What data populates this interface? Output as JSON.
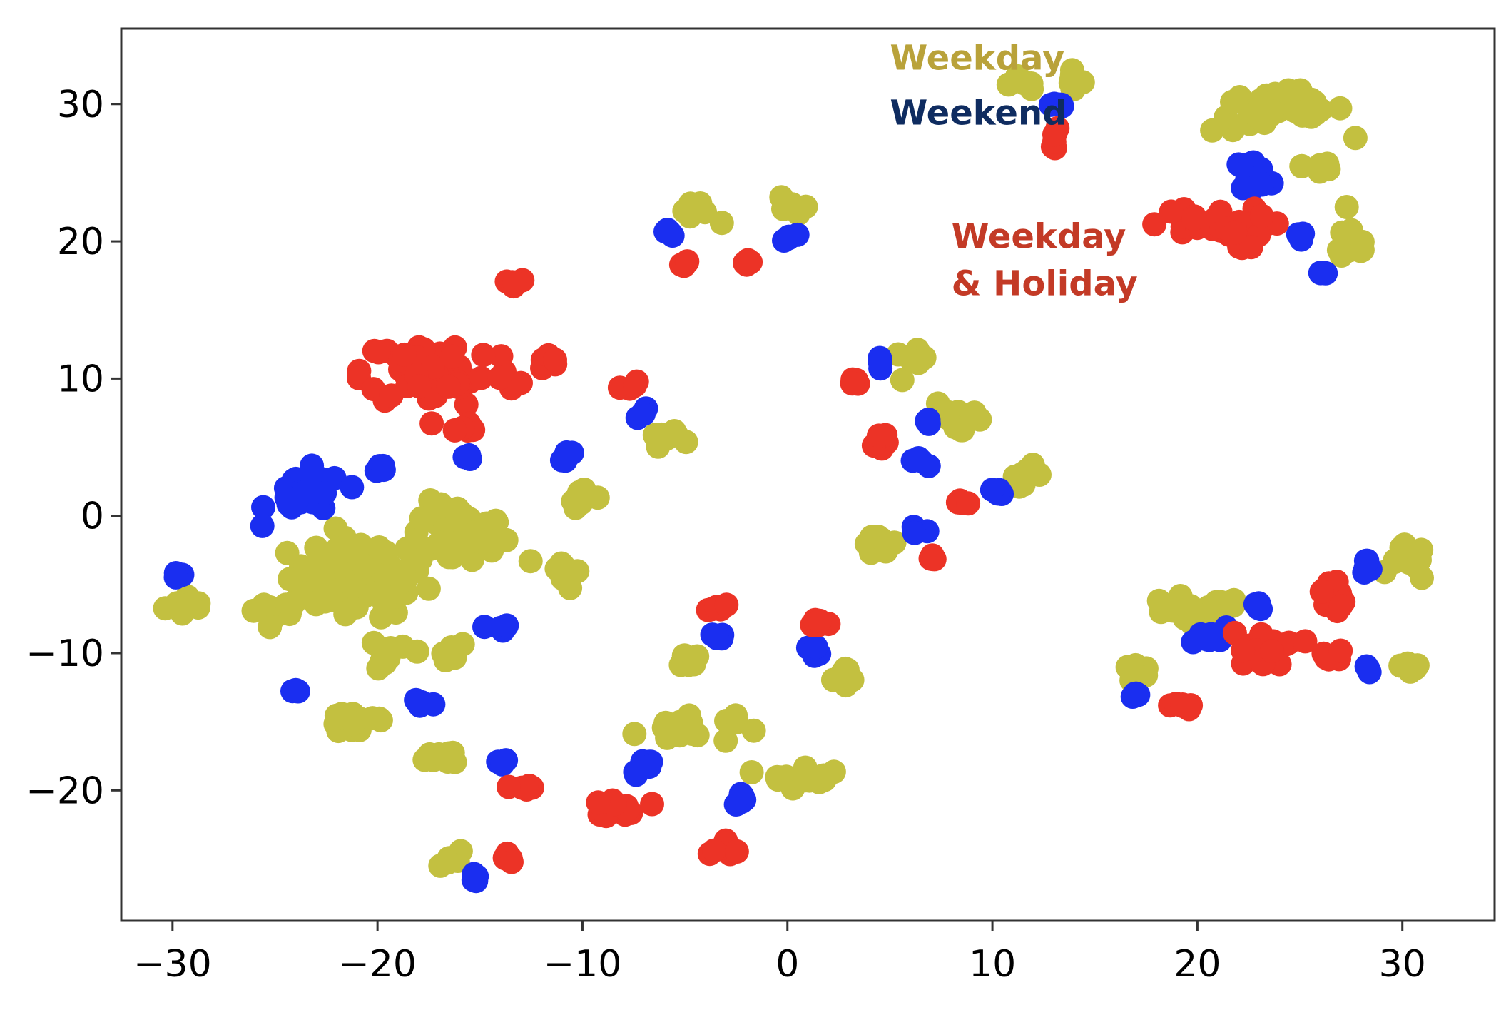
{
  "chart_data": {
    "type": "scatter",
    "title": "",
    "xlabel": "",
    "ylabel": "",
    "xlim": [
      -32.5,
      34.5
    ],
    "ylim": [
      -29.5,
      35.5
    ],
    "xticks": [
      {
        "value": -30,
        "label": "−30"
      },
      {
        "value": -20,
        "label": "−20"
      },
      {
        "value": -10,
        "label": "−10"
      },
      {
        "value": 0,
        "label": "0"
      },
      {
        "value": 10,
        "label": "10"
      },
      {
        "value": 20,
        "label": "20"
      },
      {
        "value": 30,
        "label": "30"
      }
    ],
    "yticks": [
      {
        "value": 30,
        "label": "30"
      },
      {
        "value": 20,
        "label": "20"
      },
      {
        "value": 10,
        "label": "10"
      },
      {
        "value": 0,
        "label": "0"
      },
      {
        "value": -10,
        "label": "−10"
      },
      {
        "value": -20,
        "label": "−20"
      }
    ],
    "grid": false,
    "annotations": [
      {
        "lines": [
          "Weekday"
        ],
        "x": 5,
        "y": 32.5,
        "color": "#B9A23A",
        "series": "weekday"
      },
      {
        "lines": [
          "Weekend"
        ],
        "x": 5,
        "y": 28.5,
        "color": "#0F2C60",
        "series": "weekend"
      },
      {
        "lines": [
          "Weekday",
          "& Holiday"
        ],
        "x": 8,
        "y": 19.5,
        "color": "#C33A26",
        "series": "holiday"
      }
    ],
    "series": [
      {
        "key": "weekday",
        "color": "#C3C040",
        "clusters": [
          {
            "cx": -29,
            "cy": -6.5,
            "sx": 1.2,
            "sy": 0.8,
            "n": 10
          },
          {
            "cx": -25,
            "cy": -6.8,
            "sx": 1.5,
            "sy": 0.9,
            "n": 10
          },
          {
            "cx": -21,
            "cy": -4.5,
            "sx": 3.0,
            "sy": 2.6,
            "n": 60
          },
          {
            "cx": -16,
            "cy": -1.5,
            "sx": 2.2,
            "sy": 2.2,
            "n": 40
          },
          {
            "cx": -17,
            "cy": -10,
            "sx": 1.4,
            "sy": 0.8,
            "n": 10
          },
          {
            "cx": -20,
            "cy": -10,
            "sx": 0.9,
            "sy": 1.2,
            "n": 8
          },
          {
            "cx": -21,
            "cy": -15,
            "sx": 1.8,
            "sy": 1.0,
            "n": 16
          },
          {
            "cx": -16.5,
            "cy": -17.5,
            "sx": 1.0,
            "sy": 0.6,
            "n": 8
          },
          {
            "cx": -16.5,
            "cy": -25,
            "sx": 0.7,
            "sy": 0.7,
            "n": 8
          },
          {
            "cx": -11,
            "cy": -4,
            "sx": 0.8,
            "sy": 1.1,
            "n": 8
          },
          {
            "cx": -10,
            "cy": 1.5,
            "sx": 0.6,
            "sy": 0.8,
            "n": 8
          },
          {
            "cx": -5.8,
            "cy": 5.8,
            "sx": 0.9,
            "sy": 0.6,
            "n": 8
          },
          {
            "cx": -4.7,
            "cy": 22,
            "sx": 1.0,
            "sy": 0.6,
            "n": 8
          },
          {
            "cx": 0.3,
            "cy": 22.7,
            "sx": 0.6,
            "sy": 0.8,
            "n": 8
          },
          {
            "cx": -5,
            "cy": -10.5,
            "sx": 1.0,
            "sy": 0.7,
            "n": 8
          },
          {
            "cx": -5,
            "cy": -15.5,
            "sx": 2.2,
            "sy": 1.0,
            "n": 20
          },
          {
            "cx": 0.8,
            "cy": -18.8,
            "sx": 1.6,
            "sy": 0.9,
            "n": 14
          },
          {
            "cx": 3.0,
            "cy": -11.8,
            "sx": 0.7,
            "sy": 0.7,
            "n": 8
          },
          {
            "cx": 6.0,
            "cy": 11.2,
            "sx": 0.7,
            "sy": 0.7,
            "n": 8
          },
          {
            "cx": 8.5,
            "cy": 7.2,
            "sx": 1.2,
            "sy": 1.4,
            "n": 12
          },
          {
            "cx": 11.5,
            "cy": 3.0,
            "sx": 0.9,
            "sy": 0.6,
            "n": 8
          },
          {
            "cx": 4.5,
            "cy": -2.0,
            "sx": 0.8,
            "sy": 0.6,
            "n": 8
          },
          {
            "cx": 11.5,
            "cy": 31.5,
            "sx": 0.8,
            "sy": 0.5,
            "n": 8
          },
          {
            "cx": 13.8,
            "cy": 31.7,
            "sx": 0.6,
            "sy": 0.6,
            "n": 8
          },
          {
            "cx": 24,
            "cy": 29.5,
            "sx": 3.0,
            "sy": 1.4,
            "n": 40
          },
          {
            "cx": 26.0,
            "cy": 25.5,
            "sx": 0.8,
            "sy": 0.7,
            "n": 8
          },
          {
            "cx": 27.5,
            "cy": 19.8,
            "sx": 0.9,
            "sy": 1.5,
            "n": 12
          },
          {
            "cx": 19.5,
            "cy": -7.0,
            "sx": 2.6,
            "sy": 1.0,
            "n": 26
          },
          {
            "cx": 17.2,
            "cy": -11.5,
            "sx": 0.8,
            "sy": 0.6,
            "n": 8
          },
          {
            "cx": 30.3,
            "cy": -3.5,
            "sx": 0.8,
            "sy": 1.2,
            "n": 14
          },
          {
            "cx": 30.3,
            "cy": -10.8,
            "sx": 0.7,
            "sy": 0.6,
            "n": 8
          }
        ]
      },
      {
        "key": "weekend",
        "color": "#1A2EF0",
        "clusters": [
          {
            "cx": -23.5,
            "cy": 1.5,
            "sx": 1.7,
            "sy": 1.6,
            "n": 26
          },
          {
            "cx": -19.7,
            "cy": 3.5,
            "sx": 0.4,
            "sy": 0.4,
            "n": 4
          },
          {
            "cx": -29.6,
            "cy": -4.2,
            "sx": 0.4,
            "sy": 0.3,
            "n": 4
          },
          {
            "cx": -24,
            "cy": -12.8,
            "sx": 0.2,
            "sy": 0.2,
            "n": 3
          },
          {
            "cx": -14,
            "cy": -8.2,
            "sx": 0.5,
            "sy": 0.2,
            "n": 4
          },
          {
            "cx": -17.7,
            "cy": -13.6,
            "sx": 0.5,
            "sy": 0.3,
            "n": 4
          },
          {
            "cx": -13.9,
            "cy": -17.8,
            "sx": 0.4,
            "sy": 0.4,
            "n": 4
          },
          {
            "cx": -15.3,
            "cy": -26.2,
            "sx": 0.2,
            "sy": 0.4,
            "n": 4
          },
          {
            "cx": -15.5,
            "cy": 4.3,
            "sx": 0.2,
            "sy": 0.2,
            "n": 3
          },
          {
            "cx": -10.8,
            "cy": 4.3,
            "sx": 0.4,
            "sy": 0.4,
            "n": 4
          },
          {
            "cx": -7.0,
            "cy": 7.3,
            "sx": 0.3,
            "sy": 0.4,
            "n": 4
          },
          {
            "cx": -5.7,
            "cy": 20.8,
            "sx": 0.4,
            "sy": 0.4,
            "n": 4
          },
          {
            "cx": 0.2,
            "cy": 20.4,
            "sx": 0.4,
            "sy": 0.3,
            "n": 4
          },
          {
            "cx": -6.8,
            "cy": -18.3,
            "sx": 0.8,
            "sy": 0.5,
            "n": 8
          },
          {
            "cx": -3.5,
            "cy": -8.8,
            "sx": 0.4,
            "sy": 0.4,
            "n": 4
          },
          {
            "cx": -2.4,
            "cy": -20.7,
            "sx": 0.8,
            "sy": 0.5,
            "n": 6
          },
          {
            "cx": 1.3,
            "cy": -9.8,
            "sx": 0.4,
            "sy": 0.3,
            "n": 4
          },
          {
            "cx": 4.6,
            "cy": 11.4,
            "sx": 0.2,
            "sy": 0.3,
            "n": 3
          },
          {
            "cx": 6.8,
            "cy": 7.0,
            "sx": 0.2,
            "sy": 0.3,
            "n": 3
          },
          {
            "cx": 6.5,
            "cy": 4.0,
            "sx": 0.3,
            "sy": 0.4,
            "n": 4
          },
          {
            "cx": 10.2,
            "cy": 1.7,
            "sx": 0.4,
            "sy": 0.3,
            "n": 4
          },
          {
            "cx": 6.3,
            "cy": -1.3,
            "sx": 0.3,
            "sy": 0.4,
            "n": 4
          },
          {
            "cx": 12.8,
            "cy": 29.9,
            "sx": 0.8,
            "sy": 0.2,
            "n": 6
          },
          {
            "cx": 22.8,
            "cy": 24.8,
            "sx": 0.9,
            "sy": 1.0,
            "n": 14
          },
          {
            "cx": 25.0,
            "cy": 20.5,
            "sx": 0.2,
            "sy": 0.3,
            "n": 3
          },
          {
            "cx": 26.0,
            "cy": 17.6,
            "sx": 0.2,
            "sy": 0.3,
            "n": 3
          },
          {
            "cx": 20.3,
            "cy": -8.8,
            "sx": 1.0,
            "sy": 0.6,
            "n": 8
          },
          {
            "cx": 23.0,
            "cy": -6.6,
            "sx": 0.3,
            "sy": 0.3,
            "n": 4
          },
          {
            "cx": 16.9,
            "cy": -13.0,
            "sx": 0.3,
            "sy": 0.3,
            "n": 4
          },
          {
            "cx": 28.2,
            "cy": -4.0,
            "sx": 0.3,
            "sy": 0.8,
            "n": 5
          },
          {
            "cx": 28.3,
            "cy": -11.3,
            "sx": 0.2,
            "sy": 0.4,
            "n": 3
          }
        ]
      },
      {
        "key": "holiday",
        "color": "#EC3326",
        "clusters": [
          {
            "cx": -17,
            "cy": 10.5,
            "sx": 3.4,
            "sy": 2.4,
            "n": 70
          },
          {
            "cx": -13.5,
            "cy": 17.0,
            "sx": 0.7,
            "sy": 0.4,
            "n": 6
          },
          {
            "cx": -11.5,
            "cy": 11.3,
            "sx": 0.7,
            "sy": 0.6,
            "n": 6
          },
          {
            "cx": -15.5,
            "cy": 6.2,
            "sx": 0.7,
            "sy": 0.5,
            "n": 6
          },
          {
            "cx": -12.8,
            "cy": -19.8,
            "sx": 0.5,
            "sy": 0.4,
            "n": 6
          },
          {
            "cx": -13.8,
            "cy": -25.0,
            "sx": 0.4,
            "sy": 0.4,
            "n": 6
          },
          {
            "cx": -7.7,
            "cy": 9.5,
            "sx": 0.4,
            "sy": 0.5,
            "n": 4
          },
          {
            "cx": -5.1,
            "cy": 18.4,
            "sx": 0.4,
            "sy": 0.3,
            "n": 4
          },
          {
            "cx": -1.8,
            "cy": 18.5,
            "sx": 0.5,
            "sy": 0.3,
            "n": 4
          },
          {
            "cx": -3.5,
            "cy": -6.5,
            "sx": 0.4,
            "sy": 0.4,
            "n": 5
          },
          {
            "cx": -7.8,
            "cy": -21.3,
            "sx": 1.0,
            "sy": 0.7,
            "n": 12
          },
          {
            "cx": -3.0,
            "cy": -24.0,
            "sx": 1.0,
            "sy": 0.6,
            "n": 8
          },
          {
            "cx": 1.5,
            "cy": -7.8,
            "sx": 0.5,
            "sy": 0.3,
            "n": 5
          },
          {
            "cx": 3.2,
            "cy": 9.7,
            "sx": 0.3,
            "sy": 0.4,
            "n": 4
          },
          {
            "cx": 4.5,
            "cy": 5.4,
            "sx": 0.5,
            "sy": 0.8,
            "n": 8
          },
          {
            "cx": 8.5,
            "cy": 1.0,
            "sx": 0.5,
            "sy": 0.3,
            "n": 5
          },
          {
            "cx": 7.0,
            "cy": -3.0,
            "sx": 0.3,
            "sy": 0.3,
            "n": 4
          },
          {
            "cx": 13.0,
            "cy": 27.2,
            "sx": 0.5,
            "sy": 0.8,
            "n": 6
          },
          {
            "cx": 20.5,
            "cy": 21.0,
            "sx": 2.6,
            "sy": 1.4,
            "n": 30
          },
          {
            "cx": 23.3,
            "cy": -9.8,
            "sx": 1.6,
            "sy": 1.2,
            "n": 18
          },
          {
            "cx": 19.2,
            "cy": -13.8,
            "sx": 0.5,
            "sy": 0.4,
            "n": 6
          },
          {
            "cx": 26.6,
            "cy": -5.8,
            "sx": 0.5,
            "sy": 1.3,
            "n": 10
          },
          {
            "cx": 26.6,
            "cy": -10.2,
            "sx": 0.5,
            "sy": 0.5,
            "n": 6
          }
        ]
      }
    ]
  }
}
